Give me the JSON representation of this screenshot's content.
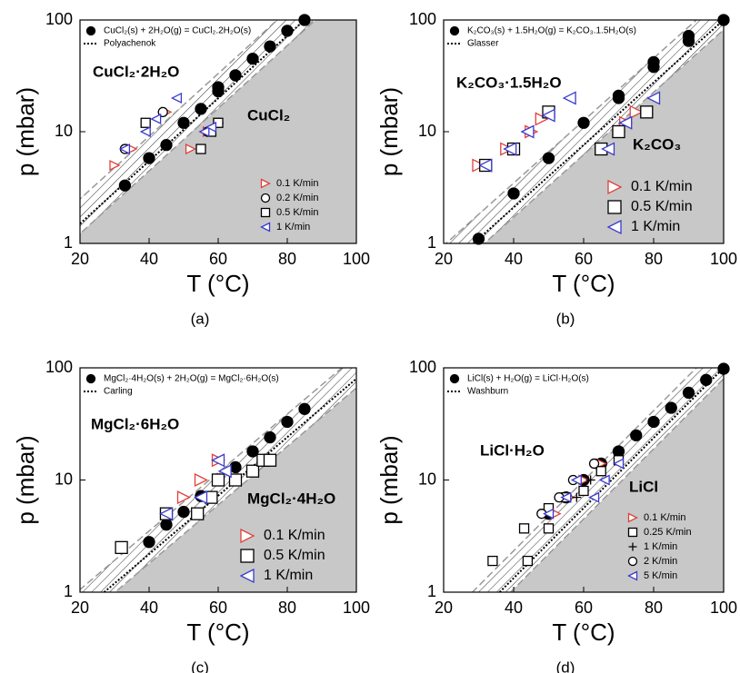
{
  "chart_data": [
    {
      "type": "scatter",
      "panel_label": "(a)",
      "xlabel": "T (°C)",
      "ylabel": "p (mbar)",
      "xlim": [
        20,
        100
      ],
      "ylim": [
        1,
        100
      ],
      "xticks": [
        20,
        40,
        60,
        80,
        100
      ],
      "yticks": [
        1,
        10,
        100
      ],
      "log_y": true,
      "annotations": [
        "CuCl₂·2H₂O",
        "CuCl₂"
      ],
      "series": [
        {
          "name": "CuCl₂(s) + 2H₂O(g) = CuCl₂.2H₂O(s)",
          "color": "#000000",
          "marker": "circle",
          "filled": true,
          "legend": "upper left",
          "x": [
            33,
            40,
            45,
            50,
            55,
            60,
            60,
            65,
            70,
            75,
            80,
            85
          ],
          "values": [
            3.3,
            5.8,
            7.6,
            12,
            16,
            23,
            25,
            32,
            45,
            58,
            80,
            100
          ]
        },
        {
          "name": "Polyachenok",
          "color": "#000000",
          "style": "dotted",
          "legend": "upper left",
          "x": [
            20,
            85
          ],
          "values": [
            1.5,
            100
          ]
        },
        {
          "name": "0.1 K/min",
          "color": "#e0403a",
          "marker": "triangle-right",
          "legend": "lower right",
          "x": [
            30,
            35,
            45,
            52,
            57,
            60
          ],
          "values": [
            5,
            7,
            15,
            7,
            10,
            12
          ]
        },
        {
          "name": "0.2 K/min",
          "color": "#000000",
          "marker": "circle",
          "legend": "lower right",
          "x": [
            33,
            44,
            57,
            60
          ],
          "values": [
            7,
            15,
            10,
            12
          ]
        },
        {
          "name": "0.5 K/min",
          "color": "#000000",
          "marker": "square",
          "legend": "lower right",
          "x": [
            39,
            55,
            58,
            60
          ],
          "values": [
            12,
            7,
            10,
            12
          ]
        },
        {
          "name": "1 K/min",
          "color": "#3a3ad0",
          "marker": "triangle-left",
          "legend": "lower right",
          "x": [
            33,
            39,
            42,
            48,
            56,
            58
          ],
          "values": [
            7,
            10,
            13,
            20,
            10,
            11
          ]
        }
      ]
    },
    {
      "type": "scatter",
      "panel_label": "(b)",
      "xlabel": "T (°C)",
      "ylabel": "p (mbar)",
      "xlim": [
        20,
        100
      ],
      "ylim": [
        1,
        100
      ],
      "xticks": [
        20,
        40,
        60,
        80,
        100
      ],
      "yticks": [
        1,
        10,
        100
      ],
      "log_y": true,
      "annotations": [
        "K₂CO₃·1.5H₂O",
        "K₂CO₃"
      ],
      "series": [
        {
          "name": "K₂CO₃(s) + 1.5H₂O(g) = K₂CO₃.1.5H₂O(s)",
          "color": "#000000",
          "marker": "circle",
          "filled": true,
          "legend": "upper left",
          "x": [
            30,
            40,
            50,
            60,
            70,
            70,
            80,
            80,
            90,
            90,
            100
          ],
          "values": [
            1.1,
            2.8,
            5.8,
            12,
            20,
            21,
            38,
            42,
            65,
            72,
            100
          ]
        },
        {
          "name": "Glasser",
          "color": "#000000",
          "style": "dotted",
          "legend": "upper left",
          "x": [
            28.5,
            100
          ],
          "values": [
            1,
            100
          ]
        },
        {
          "name": "0.1 K/min",
          "color": "#e0403a",
          "marker": "triangle-right",
          "legend": "lower right",
          "x": [
            30,
            38,
            45,
            48,
            65,
            70,
            72,
            75
          ],
          "values": [
            5,
            7,
            10,
            13,
            7,
            10,
            12,
            15
          ]
        },
        {
          "name": "0.5 K/min",
          "color": "#000000",
          "marker": "square",
          "legend": "lower right",
          "x": [
            32,
            40,
            50,
            65,
            70,
            78
          ],
          "values": [
            5,
            7,
            15,
            7,
            10,
            15
          ]
        },
        {
          "name": "1 K/min",
          "color": "#3a3ad0",
          "marker": "triangle-left",
          "legend": "lower right",
          "x": [
            32,
            39,
            44,
            50,
            56,
            67,
            72,
            80
          ],
          "values": [
            5,
            7,
            10,
            14,
            20,
            7,
            12,
            20
          ]
        }
      ]
    },
    {
      "type": "scatter",
      "panel_label": "(c)",
      "xlabel": "T (°C)",
      "ylabel": "p (mbar)",
      "xlim": [
        20,
        100
      ],
      "ylim": [
        1,
        100
      ],
      "xticks": [
        20,
        40,
        60,
        80,
        100
      ],
      "yticks": [
        1,
        10,
        100
      ],
      "log_y": true,
      "annotations": [
        "MgCl₂·6H₂O",
        "MgCl₂·4H₂O"
      ],
      "series": [
        {
          "name": "MgCl₂·4H₂O(s) + 2H₂O(g) = MgCl₂·6H₂O(s)",
          "color": "#000000",
          "marker": "circle",
          "filled": true,
          "legend": "upper left",
          "x": [
            40,
            45,
            50,
            55,
            60,
            65,
            70,
            75,
            80,
            85
          ],
          "values": [
            2.8,
            4,
            5.2,
            7.2,
            10,
            13,
            18,
            24,
            33,
            43
          ]
        },
        {
          "name": "Carling",
          "color": "#000000",
          "style": "dotted",
          "legend": "upper left",
          "x": [
            27,
            100
          ],
          "values": [
            1,
            80
          ]
        },
        {
          "name": "0.1 K/min",
          "color": "#e0403a",
          "marker": "triangle-right",
          "legend": "lower right",
          "x": [
            45,
            50,
            55,
            60
          ],
          "values": [
            5,
            7,
            10,
            15
          ]
        },
        {
          "name": "0.5 K/min",
          "color": "#000000",
          "marker": "square",
          "legend": "lower right",
          "x": [
            32,
            45,
            54,
            58,
            60,
            65,
            70,
            73,
            75
          ],
          "values": [
            2.5,
            5,
            5,
            7,
            10,
            10,
            12,
            15,
            15
          ]
        },
        {
          "name": "1 K/min",
          "color": "#3a3ad0",
          "marker": "triangle-left",
          "legend": "lower right",
          "x": [
            45,
            55,
            60,
            62
          ],
          "values": [
            5,
            7,
            15,
            12
          ]
        }
      ]
    },
    {
      "type": "scatter",
      "panel_label": "(d)",
      "xlabel": "T (°C)",
      "ylabel": "p (mbar)",
      "xlim": [
        20,
        100
      ],
      "ylim": [
        1,
        100
      ],
      "xticks": [
        20,
        40,
        60,
        80,
        100
      ],
      "yticks": [
        1,
        10,
        100
      ],
      "log_y": true,
      "annotations": [
        "LiCl·H₂O",
        "LiCl"
      ],
      "series": [
        {
          "name": "LiCl(s) + H₂O(g) = LiCl·H₂O(s)",
          "color": "#000000",
          "marker": "circle",
          "filled": true,
          "legend": "upper left",
          "x": [
            50,
            55,
            60,
            65,
            70,
            75,
            80,
            85,
            90,
            95,
            100
          ],
          "values": [
            5,
            7,
            10,
            14,
            18,
            25,
            33,
            44,
            60,
            78,
            98
          ]
        },
        {
          "name": "Washburn",
          "color": "#000000",
          "style": "dotted",
          "legend": "upper left",
          "x": [
            36,
            100
          ],
          "values": [
            1,
            100
          ]
        },
        {
          "name": "0.1 K/min",
          "color": "#e0403a",
          "marker": "triangle-right",
          "legend": "lower right",
          "x": [
            52,
            56,
            60,
            65
          ],
          "values": [
            5,
            7,
            10,
            14
          ]
        },
        {
          "name": "0.25 K/min",
          "color": "#000000",
          "marker": "square",
          "legend": "lower right",
          "x": [
            34,
            43,
            44,
            50,
            50,
            55,
            60,
            65,
            70
          ],
          "values": [
            1.9,
            3.7,
            1.9,
            3.7,
            5.6,
            7,
            8,
            12,
            15
          ]
        },
        {
          "name": "1 K/min",
          "color": "#000000",
          "marker": "plus",
          "legend": "lower right",
          "x": [
            58,
            62
          ],
          "values": [
            7,
            10
          ]
        },
        {
          "name": "2 K/min",
          "color": "#000000",
          "marker": "circle",
          "legend": "lower right",
          "x": [
            48,
            53,
            57,
            63
          ],
          "values": [
            5,
            7,
            10,
            14
          ]
        },
        {
          "name": "5 K/min",
          "color": "#3a3ad0",
          "marker": "triangle-left",
          "legend": "lower right",
          "x": [
            50,
            55,
            58,
            63,
            66,
            70
          ],
          "values": [
            5,
            7,
            10,
            7,
            10,
            14
          ]
        }
      ]
    }
  ]
}
